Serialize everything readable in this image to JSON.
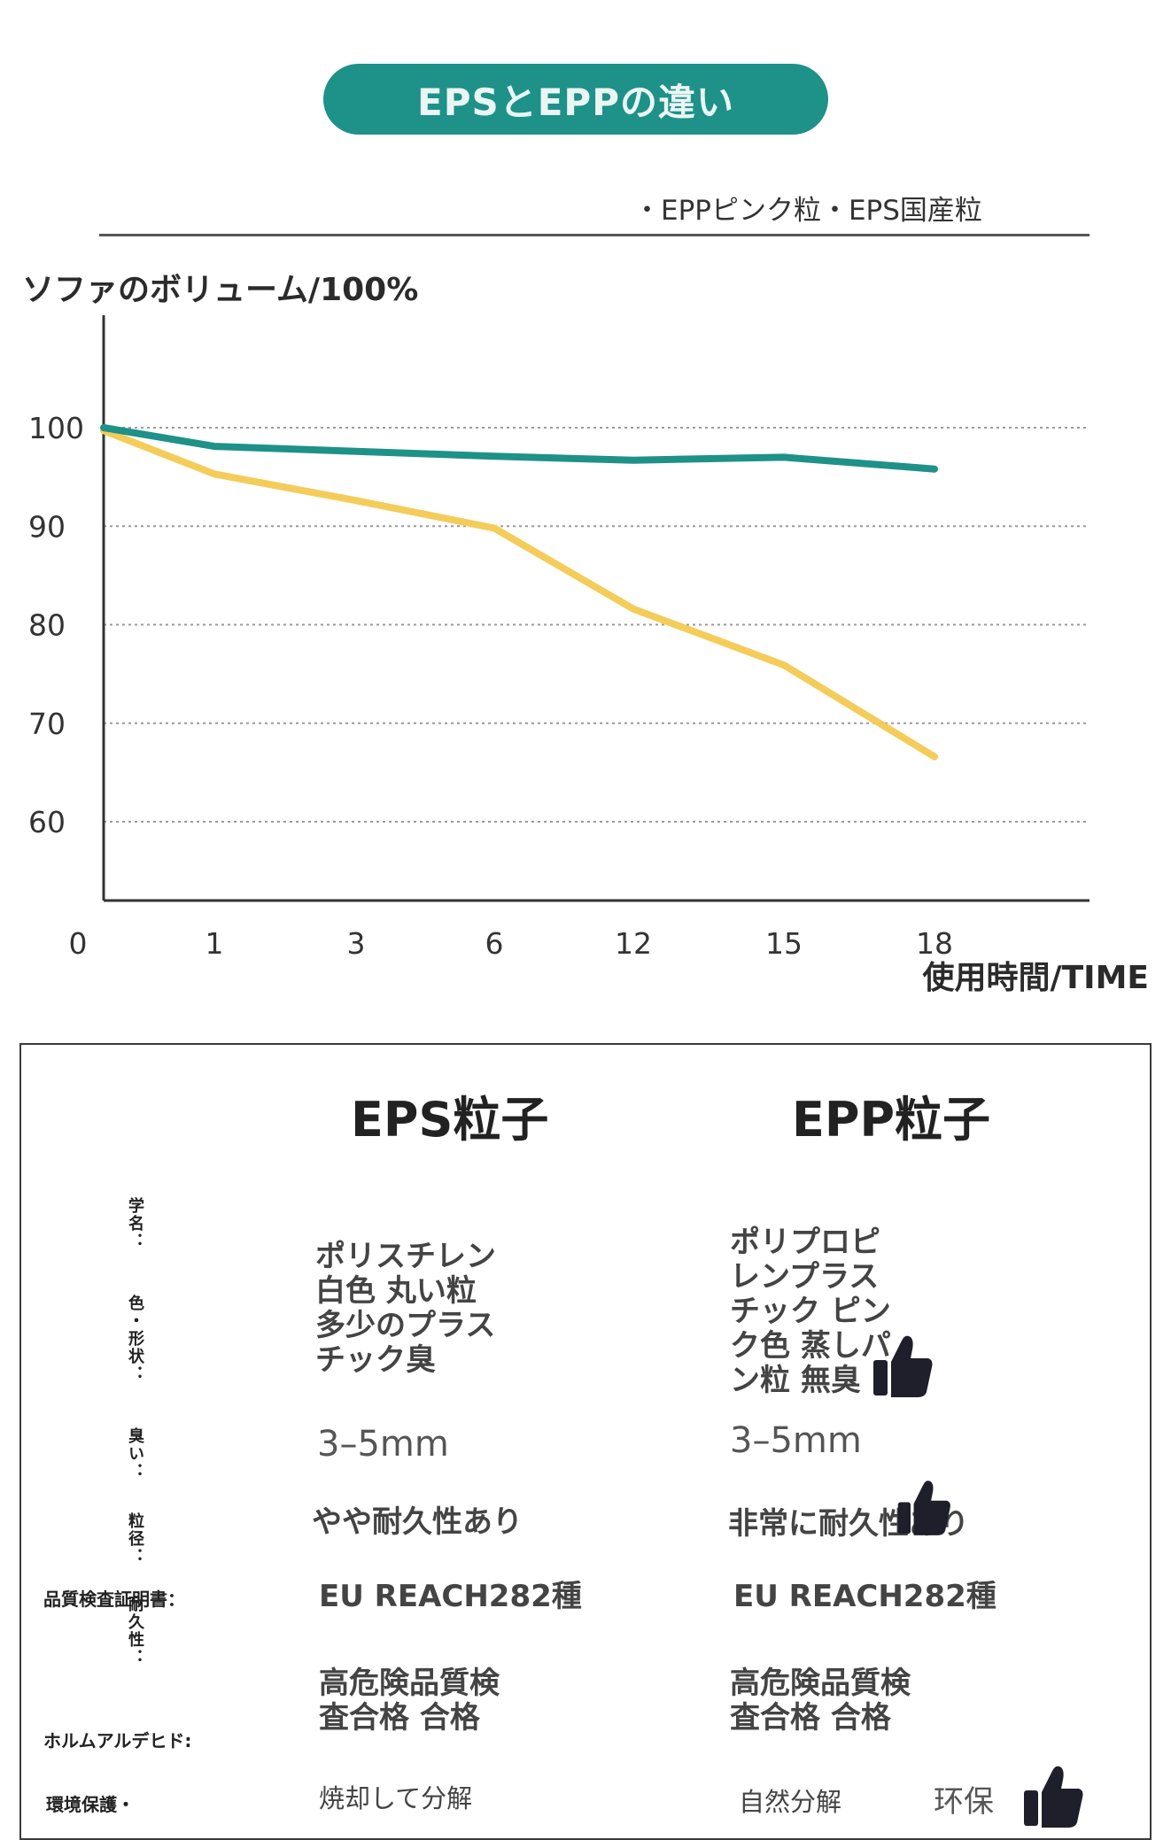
{
  "banner": {
    "title": "EPSとEPPの違い"
  },
  "legend": {
    "text": "・EPPピンク粒・EPS国産粒"
  },
  "chart_data": {
    "type": "line",
    "title": "",
    "ylabel": "ソファのボリューム/100%",
    "xlabel": "使用時間/TIME",
    "x": [
      "0",
      "1",
      "3",
      "6",
      "12",
      "15",
      "18"
    ],
    "y_ticks": [
      "100",
      "90",
      "80",
      "70",
      "60"
    ],
    "ylim": [
      52,
      112
    ],
    "grid": "horizontal dotted",
    "series": [
      {
        "color": "#1e9188",
        "values": [
          100,
          98.1,
          97.6,
          97.1,
          96.7,
          97.0,
          95.8
        ]
      },
      {
        "color": "#f4cc5a",
        "values": [
          99.7,
          95.3,
          92.6,
          89.8,
          81.6,
          75.9,
          66.6
        ]
      }
    ]
  },
  "table": {
    "headers": {
      "eps": "EPS粒子",
      "epp": "EPP粒子"
    },
    "vertical_labels": [
      "学名：",
      "色・形状：",
      "臭い：",
      "粒径：",
      "耐久性："
    ],
    "side_labels": [
      "品質検査証明書：",
      "ホルムアルデヒド:",
      "環境保護・"
    ],
    "eps": {
      "desc": [
        "ポリスチレン",
        " 白色 丸い粒",
        "多少のプラス",
        "チック臭"
      ],
      "size": "3–5mm",
      "durability": "やや耐久性あり",
      "cert": "EU REACH282種",
      "formaldehyde": [
        "高危険品質検",
        "査合格 合格"
      ],
      "eco": "焼却して分解"
    },
    "epp": {
      "desc": [
        "ポリプロピ",
        "レンプラス",
        "チック ピン",
        "ク色 蒸しパ",
        "ン粒 無臭"
      ],
      "size": "3–5mm",
      "durability": "非常に耐久性あり",
      "cert": "EU REACH282種",
      "formaldehyde": [
        "高危険品質検",
        "査合格 合格"
      ],
      "eco": "自然分解",
      "eco_tag": "环保"
    }
  },
  "icons": {
    "thumb": "thumbs-up-icon"
  }
}
